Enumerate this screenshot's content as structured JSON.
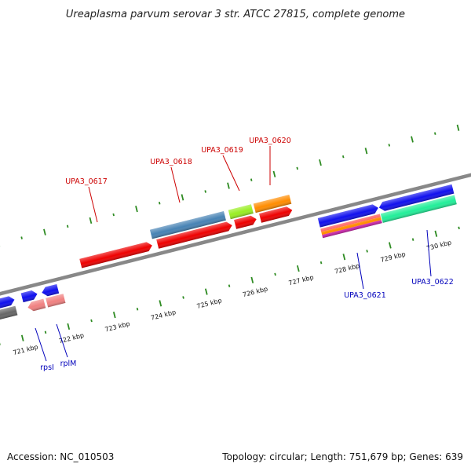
{
  "title": "Ureaplasma parvum serovar 3 str. ATCC 27815, complete genome",
  "footer": {
    "accession": "Accession: NC_010503",
    "summary": "Topology: circular; Length: 751,679 bp; Genes: 639"
  },
  "colors": {
    "top_label": "#cc0000",
    "bottom_label": "#0000bb",
    "ticks": "#2e8b22",
    "backbone": "#888888"
  },
  "ruler": [
    {
      "label": "721 kbp",
      "kbp": 721
    },
    {
      "label": "722 kbp",
      "kbp": 722
    },
    {
      "label": "723 kbp",
      "kbp": 723
    },
    {
      "label": "724 kbp",
      "kbp": 724
    },
    {
      "label": "725 kbp",
      "kbp": 725
    },
    {
      "label": "726 kbp",
      "kbp": 726
    },
    {
      "label": "727 kbp",
      "kbp": 727
    },
    {
      "label": "728 kbp",
      "kbp": 728
    },
    {
      "label": "729 kbp",
      "kbp": 729
    },
    {
      "label": "730 kbp",
      "kbp": 730
    }
  ],
  "top_labels": [
    {
      "name": "UPA3_0617"
    },
    {
      "name": "UPA3_0618"
    },
    {
      "name": "UPA3_0619"
    },
    {
      "name": "UPA3_0620"
    }
  ],
  "bottom_labels": [
    {
      "name": "rpsI"
    },
    {
      "name": "rplM"
    },
    {
      "name": "UPA3_0621"
    },
    {
      "name": "UPA3_0622"
    }
  ],
  "features": [
    {
      "id": "f-left-blue-1",
      "color": "#1010ee"
    },
    {
      "id": "f-left-blue-2",
      "color": "#1010ee"
    },
    {
      "id": "f-left-blue-3",
      "color": "#1010ee"
    },
    {
      "id": "f-left-gray",
      "color": "#666666"
    },
    {
      "id": "f-rpsi",
      "color": "#f08080"
    },
    {
      "id": "f-rplm",
      "color": "#f08080"
    },
    {
      "id": "f-0617",
      "color": "#ee0000"
    },
    {
      "id": "f-0618-blue",
      "color": "#4682b4"
    },
    {
      "id": "f-0618-red",
      "color": "#ee0000"
    },
    {
      "id": "f-0619-green",
      "color": "#99ee22"
    },
    {
      "id": "f-0619-red",
      "color": "#ee0000"
    },
    {
      "id": "f-0620-orange",
      "color": "#ff8c00"
    },
    {
      "id": "f-0620-red",
      "color": "#ee0000"
    },
    {
      "id": "f-0621-blue",
      "color": "#1010ee"
    },
    {
      "id": "f-0621-multi",
      "color": "#ff8c00"
    },
    {
      "id": "f-0622-blue",
      "color": "#1010ee"
    },
    {
      "id": "f-0622-teal",
      "color": "#22ee99"
    }
  ]
}
